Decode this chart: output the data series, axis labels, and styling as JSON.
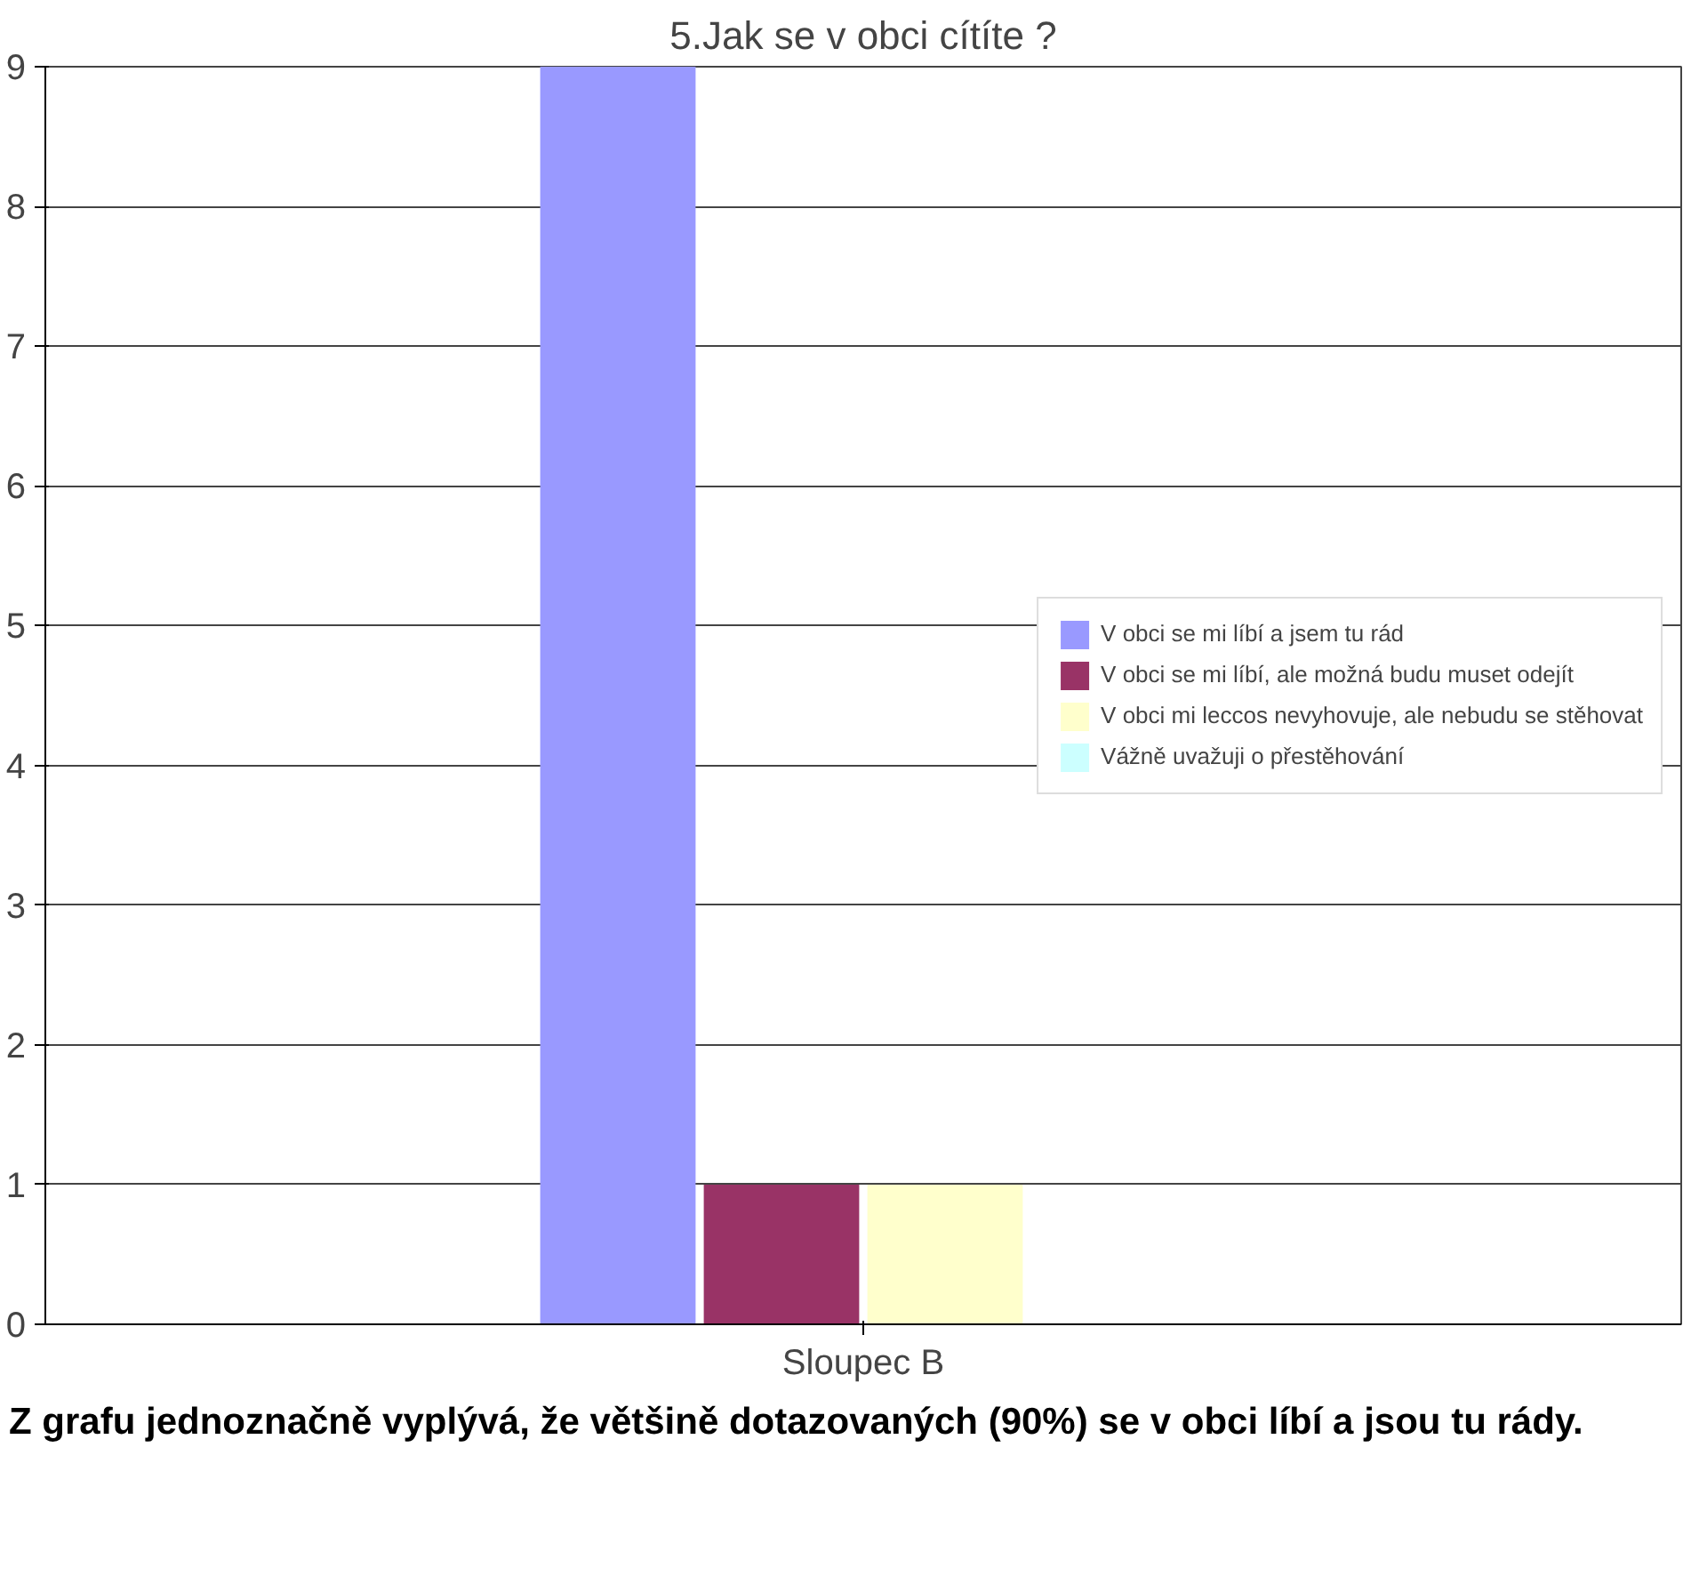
{
  "chart_data": {
    "type": "bar",
    "title": "5.Jak se v obci cítíte ?",
    "categories": [
      "Sloupec B"
    ],
    "series": [
      {
        "name": "V obci se mi líbí a jsem tu rád",
        "color": "#9999ff",
        "values": [
          9
        ]
      },
      {
        "name": "V obci se mi líbí, ale možná budu muset odejít",
        "color": "#993366",
        "values": [
          1
        ]
      },
      {
        "name": "V obci mi leccos nevyhovuje, ale nebudu se stěhovat",
        "color": "#ffffcc",
        "values": [
          1
        ]
      },
      {
        "name": "Vážně uvažuji o přestěhování",
        "color": "#ccffff",
        "values": [
          0
        ]
      }
    ],
    "ylim": [
      0,
      9
    ],
    "yticks": [
      0,
      1,
      2,
      3,
      4,
      5,
      6,
      7,
      8,
      9
    ],
    "grid": "y",
    "legend": "right",
    "annotations": [
      "Z grafu jednoznačně vyplývá, že většině dotazovaných (90%) se v obci líbí a jsou tu rády."
    ]
  }
}
